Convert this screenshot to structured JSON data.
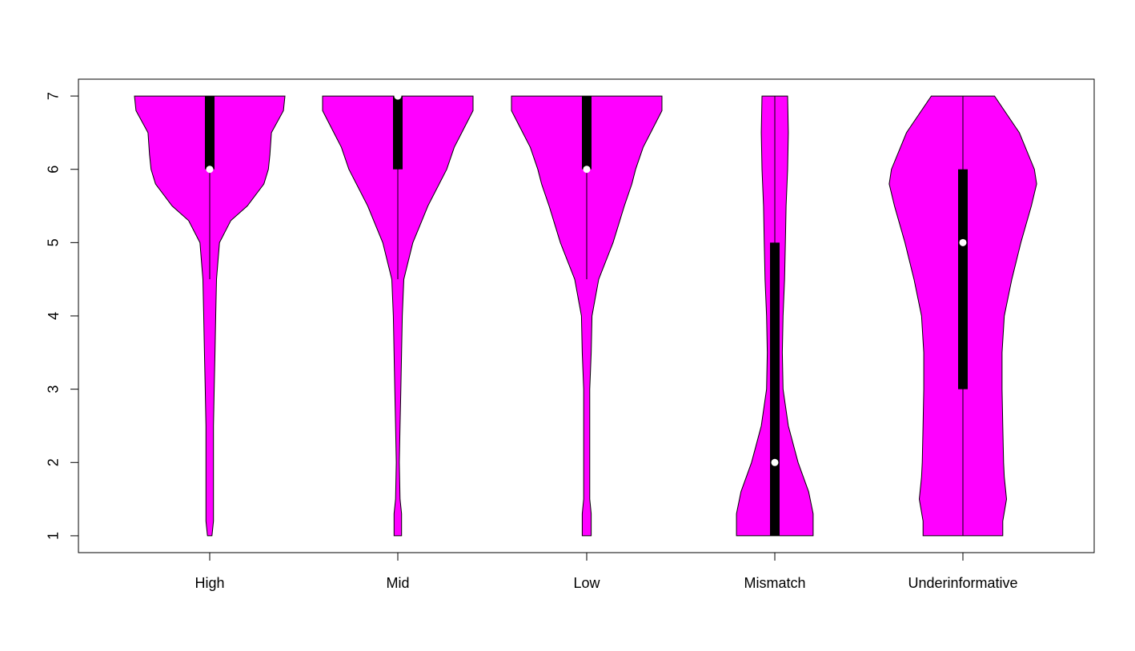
{
  "chart_data": {
    "type": "violin",
    "title": "",
    "xlabel": "",
    "ylabel": "",
    "ylim": [
      0.77,
      7.23
    ],
    "yticks": [
      1,
      2,
      3,
      4,
      5,
      6,
      7
    ],
    "ytick_labels": [
      "1",
      "2",
      "3",
      "4",
      "5",
      "6",
      "7"
    ],
    "grid": false,
    "legend": "none",
    "fill_color": "#ff00ff",
    "box_color": "#000000",
    "median_color": "#ffffff",
    "categories": [
      "High",
      "Mid",
      "Low",
      "Mismatch",
      "Underinformative"
    ],
    "series": [
      {
        "min": 1,
        "max": 7,
        "q1": 6,
        "median": 6,
        "q3": 7,
        "whisker_low": 4.5,
        "whisker_high": 7,
        "density": [
          [
            1.0,
            0.03
          ],
          [
            1.2,
            0.05
          ],
          [
            1.5,
            0.05
          ],
          [
            2.0,
            0.05
          ],
          [
            2.5,
            0.05
          ],
          [
            3.0,
            0.06
          ],
          [
            3.5,
            0.07
          ],
          [
            4.0,
            0.08
          ],
          [
            4.5,
            0.09
          ],
          [
            5.0,
            0.13
          ],
          [
            5.3,
            0.28
          ],
          [
            5.5,
            0.5
          ],
          [
            5.8,
            0.72
          ],
          [
            6.0,
            0.78
          ],
          [
            6.2,
            0.8
          ],
          [
            6.5,
            0.82
          ],
          [
            6.8,
            0.98
          ],
          [
            7.0,
            1.0
          ]
        ]
      },
      {
        "min": 1,
        "max": 7,
        "q1": 6,
        "median": 7,
        "q3": 7,
        "whisker_low": 4.5,
        "whisker_high": 7,
        "density": [
          [
            1.0,
            0.05
          ],
          [
            1.3,
            0.05
          ],
          [
            1.5,
            0.03
          ],
          [
            2.0,
            0.02
          ],
          [
            2.5,
            0.03
          ],
          [
            3.0,
            0.04
          ],
          [
            3.5,
            0.05
          ],
          [
            4.0,
            0.06
          ],
          [
            4.5,
            0.08
          ],
          [
            5.0,
            0.2
          ],
          [
            5.3,
            0.32
          ],
          [
            5.5,
            0.4
          ],
          [
            5.8,
            0.55
          ],
          [
            6.0,
            0.65
          ],
          [
            6.3,
            0.75
          ],
          [
            6.5,
            0.85
          ],
          [
            6.8,
            1.0
          ],
          [
            7.0,
            1.0
          ]
        ]
      },
      {
        "min": 1,
        "max": 7,
        "q1": 6,
        "median": 6,
        "q3": 7,
        "whisker_low": 4.5,
        "whisker_high": 7,
        "density": [
          [
            1.0,
            0.06
          ],
          [
            1.3,
            0.06
          ],
          [
            1.5,
            0.04
          ],
          [
            2.0,
            0.04
          ],
          [
            2.5,
            0.04
          ],
          [
            3.0,
            0.04
          ],
          [
            3.5,
            0.06
          ],
          [
            4.0,
            0.07
          ],
          [
            4.5,
            0.16
          ],
          [
            5.0,
            0.35
          ],
          [
            5.5,
            0.5
          ],
          [
            5.8,
            0.6
          ],
          [
            6.0,
            0.65
          ],
          [
            6.3,
            0.75
          ],
          [
            6.5,
            0.85
          ],
          [
            6.8,
            1.0
          ],
          [
            7.0,
            1.0
          ]
        ]
      },
      {
        "min": 1,
        "max": 7,
        "q1": 1,
        "median": 2,
        "q3": 5,
        "whisker_low": 1,
        "whisker_high": 7,
        "density": [
          [
            1.0,
            0.51
          ],
          [
            1.3,
            0.51
          ],
          [
            1.6,
            0.45
          ],
          [
            2.0,
            0.31
          ],
          [
            2.5,
            0.18
          ],
          [
            3.0,
            0.11
          ],
          [
            3.5,
            0.1
          ],
          [
            4.0,
            0.11
          ],
          [
            4.5,
            0.13
          ],
          [
            5.0,
            0.14
          ],
          [
            5.5,
            0.15
          ],
          [
            6.0,
            0.17
          ],
          [
            6.5,
            0.18
          ],
          [
            7.0,
            0.17
          ]
        ]
      },
      {
        "min": 1,
        "max": 7,
        "q1": 3,
        "median": 5,
        "q3": 6,
        "whisker_low": 1,
        "whisker_high": 7,
        "density": [
          [
            1.0,
            0.53
          ],
          [
            1.2,
            0.53
          ],
          [
            1.5,
            0.58
          ],
          [
            1.8,
            0.55
          ],
          [
            2.0,
            0.54
          ],
          [
            2.5,
            0.53
          ],
          [
            3.0,
            0.52
          ],
          [
            3.5,
            0.52
          ],
          [
            4.0,
            0.55
          ],
          [
            4.5,
            0.65
          ],
          [
            5.0,
            0.77
          ],
          [
            5.5,
            0.91
          ],
          [
            5.8,
            0.98
          ],
          [
            6.0,
            0.95
          ],
          [
            6.5,
            0.75
          ],
          [
            7.0,
            0.42
          ]
        ]
      }
    ]
  }
}
